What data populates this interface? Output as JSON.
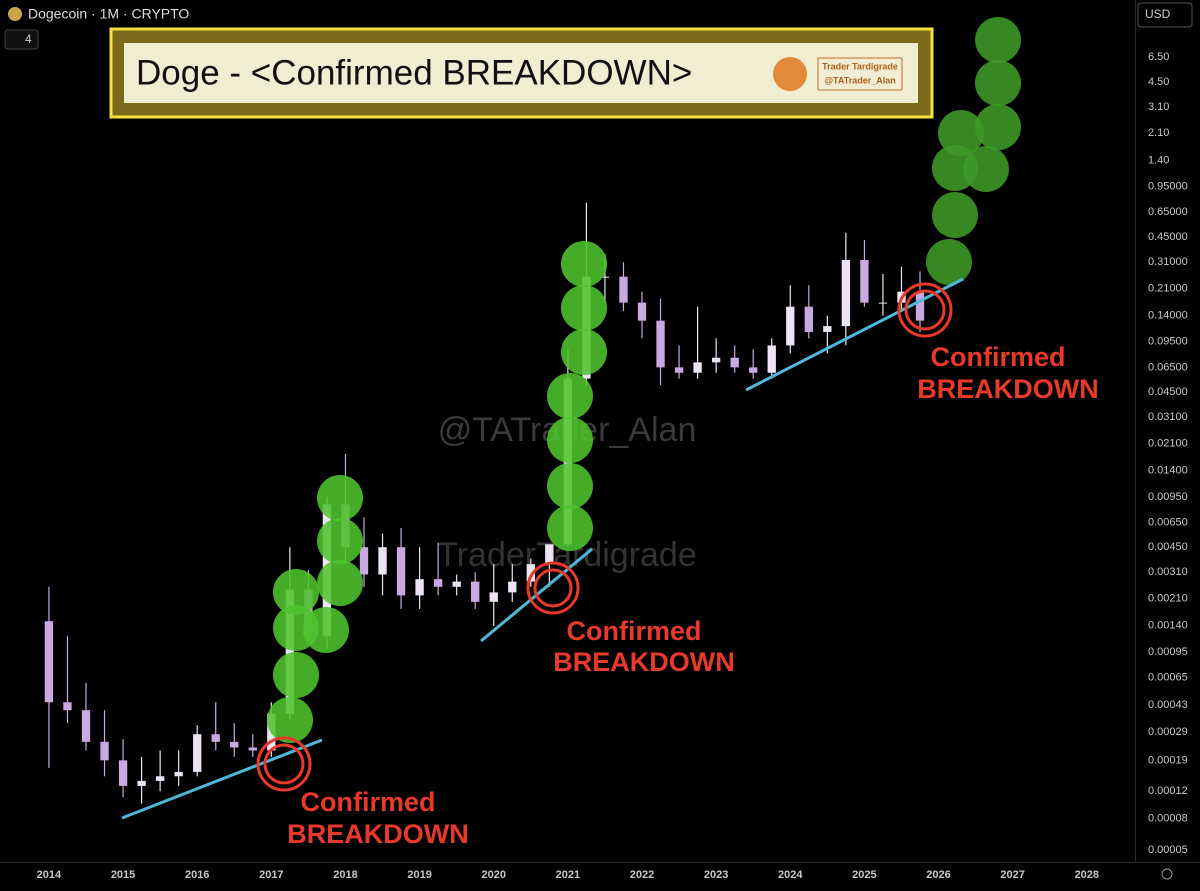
{
  "header": {
    "symbol": "Dogecoin · 1M · CRYPTO",
    "indicator_count": 4,
    "currency": "USD"
  },
  "banner": {
    "title": "Doge - <Confirmed BREAKDOWN>",
    "logo_name": "Trader Tardigrade",
    "logo_handle": "@TATrader_Alan"
  },
  "watermarks": [
    "@TATrader_Alan",
    "TraderTardigrade"
  ],
  "annotations": [
    [
      "Confirmed",
      "BREAKDOWN"
    ],
    [
      "Confirmed",
      "BREAKDOWN"
    ],
    [
      "Confirmed",
      "BREAKDOWN"
    ]
  ],
  "chart_data": {
    "type": "candlestick",
    "log_scale": true,
    "grid": false,
    "up_color": "#ece4f4",
    "down_color": "#c9a9e2",
    "xlim": [
      2013.34,
      2028.65
    ],
    "xticks": [
      2014,
      2015,
      2016,
      2017,
      2018,
      2019,
      2020,
      2021,
      2022,
      2023,
      2024,
      2025,
      2026,
      2027,
      2028
    ],
    "ylim": [
      4.2e-05,
      15.2
    ],
    "yticks": [
      {
        "value": 6.5,
        "label": "6.50"
      },
      {
        "value": 4.5,
        "label": "4.50"
      },
      {
        "value": 3.1,
        "label": "3.10"
      },
      {
        "value": 2.1,
        "label": "2.10"
      },
      {
        "value": 1.4,
        "label": "1.40"
      },
      {
        "value": 0.95,
        "label": "0.95000"
      },
      {
        "value": 0.65,
        "label": "0.65000"
      },
      {
        "value": 0.45,
        "label": "0.45000"
      },
      {
        "value": 0.31,
        "label": "0.31000"
      },
      {
        "value": 0.21,
        "label": "0.21000"
      },
      {
        "value": 0.14,
        "label": "0.14000"
      },
      {
        "value": 0.095,
        "label": "0.09500"
      },
      {
        "value": 0.065,
        "label": "0.06500"
      },
      {
        "value": 0.045,
        "label": "0.04500"
      },
      {
        "value": 0.031,
        "label": "0.03100"
      },
      {
        "value": 0.021,
        "label": "0.02100"
      },
      {
        "value": 0.014,
        "label": "0.01400"
      },
      {
        "value": 0.0095,
        "label": "0.00950"
      },
      {
        "value": 0.0065,
        "label": "0.00650"
      },
      {
        "value": 0.0045,
        "label": "0.00450"
      },
      {
        "value": 0.0031,
        "label": "0.00310"
      },
      {
        "value": 0.0021,
        "label": "0.00210"
      },
      {
        "value": 0.0014,
        "label": "0.00140"
      },
      {
        "value": 0.00095,
        "label": "0.00095"
      },
      {
        "value": 0.00065,
        "label": "0.00065"
      },
      {
        "value": 0.00043,
        "label": "0.00043"
      },
      {
        "value": 0.00029,
        "label": "0.00029"
      },
      {
        "value": 0.00019,
        "label": "0.00019"
      },
      {
        "value": 0.00012,
        "label": "0.00012"
      },
      {
        "value": 8e-05,
        "label": "0.00008"
      },
      {
        "value": 5e-05,
        "label": "0.00005"
      }
    ],
    "x": [
      2014.0,
      2014.25,
      2014.5,
      2014.75,
      2015.0,
      2015.25,
      2015.5,
      2015.75,
      2016.0,
      2016.25,
      2016.5,
      2016.75,
      2017.0,
      2017.25,
      2017.5,
      2017.75,
      2018.0,
      2018.25,
      2018.5,
      2018.75,
      2019.0,
      2019.25,
      2019.5,
      2019.75,
      2020.0,
      2020.25,
      2020.5,
      2020.75,
      2021.0,
      2021.25,
      2021.5,
      2021.75,
      2022.0,
      2022.25,
      2022.5,
      2022.75,
      2023.0,
      2023.25,
      2023.5,
      2023.75,
      2024.0,
      2024.25,
      2024.5,
      2024.75,
      2025.0,
      2025.25,
      2025.5,
      2025.75
    ],
    "open": [
      0.0015,
      0.00045,
      0.0004,
      0.00025,
      0.00019,
      0.00013,
      0.00014,
      0.00015,
      0.00016,
      0.00028,
      0.00025,
      0.00023,
      0.00022,
      0.00038,
      0.0024,
      0.0012,
      0.0085,
      0.0045,
      0.003,
      0.0045,
      0.0022,
      0.0028,
      0.0025,
      0.0027,
      0.002,
      0.0023,
      0.0027,
      0.0035,
      0.0047,
      0.055,
      0.25,
      0.25,
      0.17,
      0.13,
      0.065,
      0.06,
      0.07,
      0.075,
      0.065,
      0.06,
      0.09,
      0.16,
      0.11,
      0.12,
      0.32,
      0.17,
      0.17,
      0.2
    ],
    "high": [
      0.0025,
      0.0012,
      0.0006,
      0.0004,
      0.00026,
      0.0002,
      0.00022,
      0.00022,
      0.00032,
      0.00045,
      0.00033,
      0.00028,
      0.00045,
      0.0045,
      0.0032,
      0.0095,
      0.018,
      0.007,
      0.0055,
      0.006,
      0.0045,
      0.0048,
      0.003,
      0.0031,
      0.0035,
      0.0035,
      0.0038,
      0.0045,
      0.085,
      0.75,
      0.35,
      0.31,
      0.2,
      0.18,
      0.09,
      0.16,
      0.1,
      0.09,
      0.085,
      0.1,
      0.22,
      0.22,
      0.14,
      0.48,
      0.43,
      0.26,
      0.29,
      0.27
    ],
    "low": [
      0.00017,
      0.00033,
      0.00022,
      0.00015,
      0.00011,
      0.0001,
      0.00012,
      0.00013,
      0.00015,
      0.00022,
      0.0002,
      0.0002,
      0.0002,
      0.00035,
      0.0011,
      0.001,
      0.0035,
      0.0025,
      0.0022,
      0.0018,
      0.0018,
      0.0022,
      0.0022,
      0.0018,
      0.0014,
      0.002,
      0.0025,
      0.0025,
      0.0045,
      0.05,
      0.17,
      0.15,
      0.1,
      0.05,
      0.055,
      0.055,
      0.06,
      0.06,
      0.055,
      0.055,
      0.08,
      0.1,
      0.08,
      0.09,
      0.16,
      0.14,
      0.15,
      0.11
    ],
    "close": [
      0.00045,
      0.0004,
      0.00025,
      0.00019,
      0.00013,
      0.00014,
      0.00015,
      0.00016,
      0.00028,
      0.00025,
      0.00023,
      0.00022,
      0.00038,
      0.0024,
      0.0012,
      0.0085,
      0.0045,
      0.003,
      0.0045,
      0.0022,
      0.0028,
      0.0025,
      0.0027,
      0.002,
      0.0023,
      0.0027,
      0.0035,
      0.0047,
      0.055,
      0.25,
      0.25,
      0.17,
      0.13,
      0.065,
      0.06,
      0.07,
      0.075,
      0.065,
      0.06,
      0.09,
      0.16,
      0.11,
      0.12,
      0.32,
      0.17,
      0.17,
      0.2,
      0.13
    ]
  }
}
